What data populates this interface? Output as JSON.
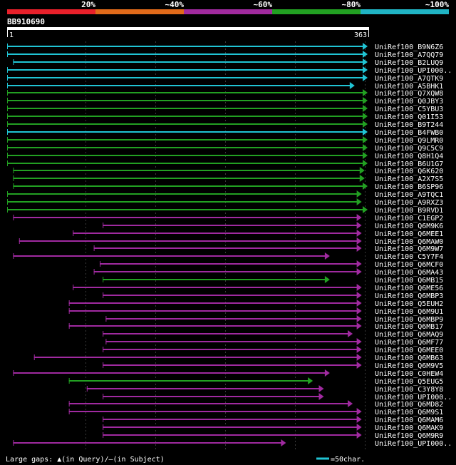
{
  "legend": {
    "labels": [
      "20%",
      "~40%",
      "~60%",
      "~80%",
      "~100%"
    ],
    "colors": [
      "#e8202a",
      "#e06a1a",
      "#a02a9e",
      "#22a022",
      "#20b4c4"
    ]
  },
  "query": {
    "name": "BB910690",
    "start": "1",
    "end": "363"
  },
  "footer": {
    "gaps_text": "Large gaps: ▲(in Query)/—(in Subject)",
    "scale_text": "=50char."
  },
  "colors": {
    "cyan": "#20c4d4",
    "green": "#22a022",
    "magenta": "#a02aa0"
  },
  "hits": [
    {
      "label": "UniRef100_B9N6Z6",
      "color": "cyan",
      "s": 1,
      "e": 363
    },
    {
      "label": "UniRef100_A7QQ79",
      "color": "cyan",
      "s": 1,
      "e": 363
    },
    {
      "label": "UniRef100_B2LUQ9",
      "color": "cyan",
      "s": 7,
      "e": 363
    },
    {
      "label": "UniRef100_UPI000..",
      "color": "cyan",
      "s": 1,
      "e": 363
    },
    {
      "label": "UniRef100_A7QTK9",
      "color": "cyan",
      "s": 1,
      "e": 363
    },
    {
      "label": "UniRef100_A5BHK1",
      "color": "cyan",
      "s": 1,
      "e": 350
    },
    {
      "label": "UniRef100_Q7XQW8",
      "color": "green",
      "s": 1,
      "e": 363
    },
    {
      "label": "UniRef100_Q0JBY3",
      "color": "green",
      "s": 1,
      "e": 363
    },
    {
      "label": "UniRef100_C5YBU3",
      "color": "green",
      "s": 1,
      "e": 363
    },
    {
      "label": "UniRef100_Q01I53",
      "color": "green",
      "s": 1,
      "e": 363
    },
    {
      "label": "UniRef100_B9T244",
      "color": "green",
      "s": 1,
      "e": 363
    },
    {
      "label": "UniRef100_B4FWB0",
      "color": "cyan",
      "s": 1,
      "e": 363
    },
    {
      "label": "UniRef100_Q9LMR0",
      "color": "green",
      "s": 1,
      "e": 363
    },
    {
      "label": "UniRef100_Q9C5C9",
      "color": "green",
      "s": 1,
      "e": 363
    },
    {
      "label": "UniRef100_Q8H1Q4",
      "color": "green",
      "s": 1,
      "e": 363
    },
    {
      "label": "UniRef100_B6U1G7",
      "color": "green",
      "s": 1,
      "e": 363
    },
    {
      "label": "UniRef100_Q6K620",
      "color": "green",
      "s": 7,
      "e": 360
    },
    {
      "label": "UniRef100_A2X7S5",
      "color": "green",
      "s": 7,
      "e": 360
    },
    {
      "label": "UniRef100_B6SP96",
      "color": "green",
      "s": 7,
      "e": 363
    },
    {
      "label": "UniRef100_A9TQC1",
      "color": "green",
      "s": 1,
      "e": 357
    },
    {
      "label": "UniRef100_A9RXZ3",
      "color": "green",
      "s": 1,
      "e": 357
    },
    {
      "label": "UniRef100_B9RVD1",
      "color": "green",
      "s": 1,
      "e": 363
    },
    {
      "label": "UniRef100_C1EGP2",
      "color": "magenta",
      "s": 7,
      "e": 357
    },
    {
      "label": "UniRef100_Q6M9K6",
      "color": "magenta",
      "s": 97,
      "e": 357
    },
    {
      "label": "UniRef100_Q6MEE1",
      "color": "magenta",
      "s": 67,
      "e": 357
    },
    {
      "label": "UniRef100_Q6MAW0",
      "color": "magenta",
      "s": 13,
      "e": 357
    },
    {
      "label": "UniRef100_Q6M9W7",
      "color": "magenta",
      "s": 88,
      "e": 357
    },
    {
      "label": "UniRef100_C5Y7F4",
      "color": "magenta",
      "s": 7,
      "e": 325
    },
    {
      "label": "UniRef100_Q6MCF0",
      "color": "magenta",
      "s": 94,
      "e": 357
    },
    {
      "label": "UniRef100_Q6MA43",
      "color": "magenta",
      "s": 88,
      "e": 357
    },
    {
      "label": "UniRef100_Q6MB15",
      "color": "green",
      "s": 97,
      "e": 325
    },
    {
      "label": "UniRef100_Q6ME56",
      "color": "magenta",
      "s": 67,
      "e": 357
    },
    {
      "label": "UniRef100_Q6MBP3",
      "color": "magenta",
      "s": 97,
      "e": 357
    },
    {
      "label": "UniRef100_Q5EUH2",
      "color": "magenta",
      "s": 63,
      "e": 357
    },
    {
      "label": "UniRef100_Q6M9U1",
      "color": "magenta",
      "s": 63,
      "e": 357
    },
    {
      "label": "UniRef100_Q6MBP9",
      "color": "magenta",
      "s": 100,
      "e": 357
    },
    {
      "label": "UniRef100_Q6MB17",
      "color": "magenta",
      "s": 63,
      "e": 357
    },
    {
      "label": "UniRef100_Q6MAQ9",
      "color": "magenta",
      "s": 97,
      "e": 348
    },
    {
      "label": "UniRef100_Q6MF77",
      "color": "magenta",
      "s": 100,
      "e": 357
    },
    {
      "label": "UniRef100_Q6MEE0",
      "color": "magenta",
      "s": 97,
      "e": 357
    },
    {
      "label": "UniRef100_Q6MB63",
      "color": "magenta",
      "s": 28,
      "e": 357
    },
    {
      "label": "UniRef100_Q6M9V5",
      "color": "magenta",
      "s": 97,
      "e": 357
    },
    {
      "label": "UniRef100_C0HEW4",
      "color": "magenta",
      "s": 7,
      "e": 325
    },
    {
      "label": "UniRef100_Q5EUG5",
      "color": "green",
      "s": 63,
      "e": 308
    },
    {
      "label": "UniRef100_C3Y8Y8",
      "color": "magenta",
      "s": 81,
      "e": 319
    },
    {
      "label": "UniRef100_UPI000..",
      "color": "magenta",
      "s": 97,
      "e": 319
    },
    {
      "label": "UniRef100_Q6MD82",
      "color": "magenta",
      "s": 63,
      "e": 348
    },
    {
      "label": "UniRef100_Q6M9S1",
      "color": "magenta",
      "s": 63,
      "e": 357
    },
    {
      "label": "UniRef100_Q6MAM6",
      "color": "magenta",
      "s": 97,
      "e": 357
    },
    {
      "label": "UniRef100_Q6MAK9",
      "color": "magenta",
      "s": 97,
      "e": 357
    },
    {
      "label": "UniRef100_Q6M9R9",
      "color": "magenta",
      "s": 97,
      "e": 357
    },
    {
      "label": "UniRef100_UPI000..",
      "color": "magenta",
      "s": 7,
      "e": 281
    }
  ]
}
